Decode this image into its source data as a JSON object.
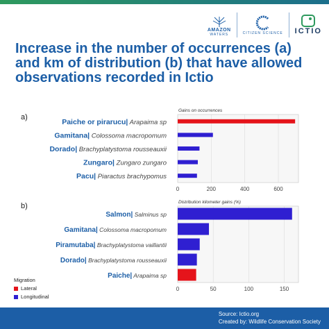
{
  "header": {
    "logos": {
      "amazon_waters_line1": "AMAZON",
      "amazon_waters_line2": "WATERS",
      "citizen_science": "CITIZEN SCIENCE",
      "ictio": "ICTIO"
    },
    "title": "Increase in the number of occurrences (a) and km of distribution (b) that have allowed observations recorded in Ictio"
  },
  "colors": {
    "lateral": "#e5141b",
    "longitudinal": "#2f1fd1",
    "text": "#1c5ea6"
  },
  "chart_data": [
    {
      "type": "bar",
      "orientation": "horizontal",
      "panel_label": "a)",
      "title": "Gains on occurrences",
      "ticks": [
        0,
        200,
        400,
        600
      ],
      "xlim": [
        0,
        720
      ],
      "grid": true,
      "categories": [
        {
          "name": "Paiche or pirarucu",
          "sci": "Arapaima sp",
          "value": 700,
          "migration": "lateral"
        },
        {
          "name": "Gamitana",
          "sci": "Colossoma macropomum",
          "value": 210,
          "migration": "longitudinal"
        },
        {
          "name": "Dorado",
          "sci": "Brachyplatystoma rousseauxii",
          "value": 130,
          "migration": "longitudinal"
        },
        {
          "name": "Zungaro",
          "sci": "Zungaro zungaro",
          "value": 120,
          "migration": "longitudinal"
        },
        {
          "name": "Pacu",
          "sci": "Piaractus brachypomus",
          "value": 115,
          "migration": "longitudinal"
        }
      ]
    },
    {
      "type": "bar",
      "orientation": "horizontal",
      "panel_label": "b)",
      "title": "Distribution kilometer gains (%)",
      "ticks": [
        0,
        50,
        100,
        150
      ],
      "xlim": [
        0,
        170
      ],
      "grid": true,
      "categories": [
        {
          "name": "Salmon",
          "sci": "Salminus sp",
          "value": 161,
          "migration": "longitudinal"
        },
        {
          "name": "Gamitana",
          "sci": "Colossoma macropomum",
          "value": 44,
          "migration": "longitudinal"
        },
        {
          "name": "Piramutaba",
          "sci": "Brachyplatystoma vaillantii",
          "value": 31,
          "migration": "longitudinal"
        },
        {
          "name": "Dorado",
          "sci": "Brachyplatystoma rousseauxii",
          "value": 27,
          "migration": "longitudinal"
        },
        {
          "name": "Paiche",
          "sci": "Arapaima sp",
          "value": 26,
          "migration": "lateral"
        }
      ]
    }
  ],
  "legend": {
    "title": "Migration",
    "items": [
      {
        "label": "Lateral",
        "key": "lateral"
      },
      {
        "label": "Longitudinal",
        "key": "longitudinal"
      }
    ]
  },
  "footer": {
    "source": "Source: Ictio.org",
    "credit": "Created by: Wildlife Conservation Society"
  }
}
